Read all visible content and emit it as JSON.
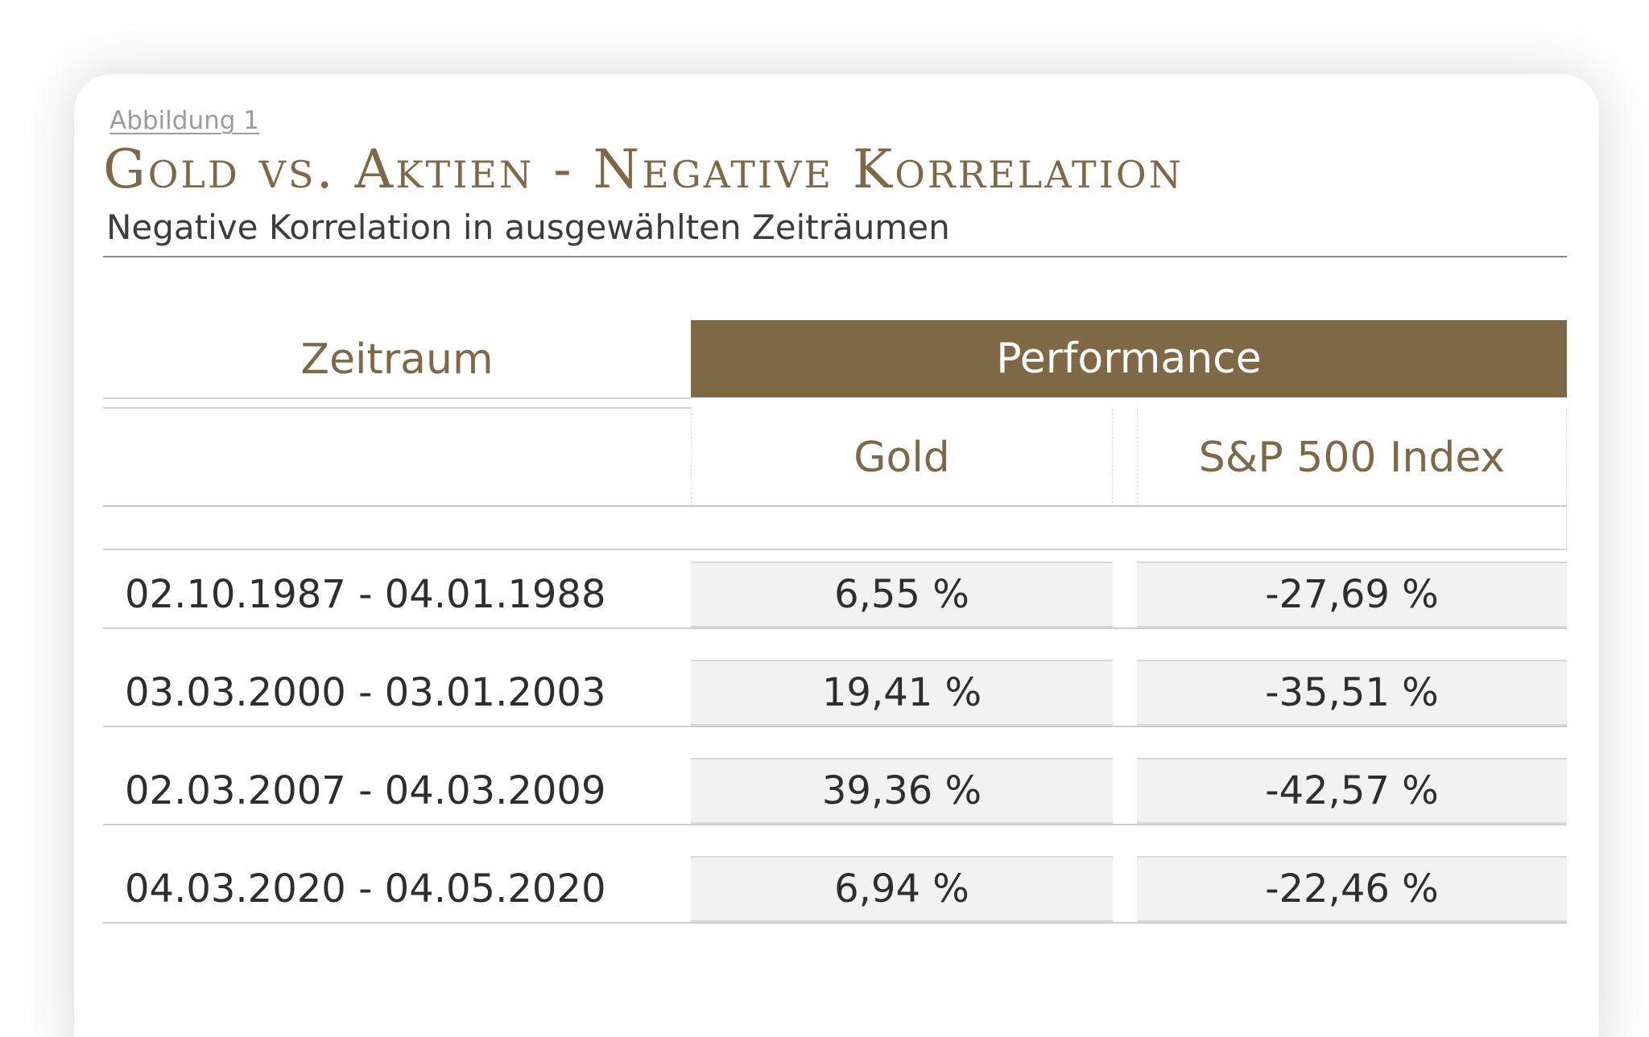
{
  "figure_label": "Abbildung 1",
  "chart_data": {
    "type": "table",
    "title": "Gold vs. Aktien - Negative Korrelation",
    "subtitle": "Negative Korrelation in ausgewählten Zeiträumen",
    "header": {
      "period": "Zeitraum",
      "group": "Performance",
      "columns": [
        "Gold",
        "S&P 500 Index"
      ]
    },
    "rows": [
      {
        "period": "02.10.1987 - 04.01.1988",
        "gold": "6,55 %",
        "sp500": "-27,69 %"
      },
      {
        "period": "03.03.2000 - 03.01.2003",
        "gold": "19,41 %",
        "sp500": "-35,51 %"
      },
      {
        "period": "02.03.2007 - 04.03.2009",
        "gold": "39,36 %",
        "sp500": "-42,57 %"
      },
      {
        "period": "04.03.2020 - 04.05.2020",
        "gold": "6,94 %",
        "sp500": "-22,46 %"
      }
    ]
  },
  "colors": {
    "accent": "#7e6845",
    "cell_background": "#f2f2f2",
    "text": "#2e2e2e"
  }
}
